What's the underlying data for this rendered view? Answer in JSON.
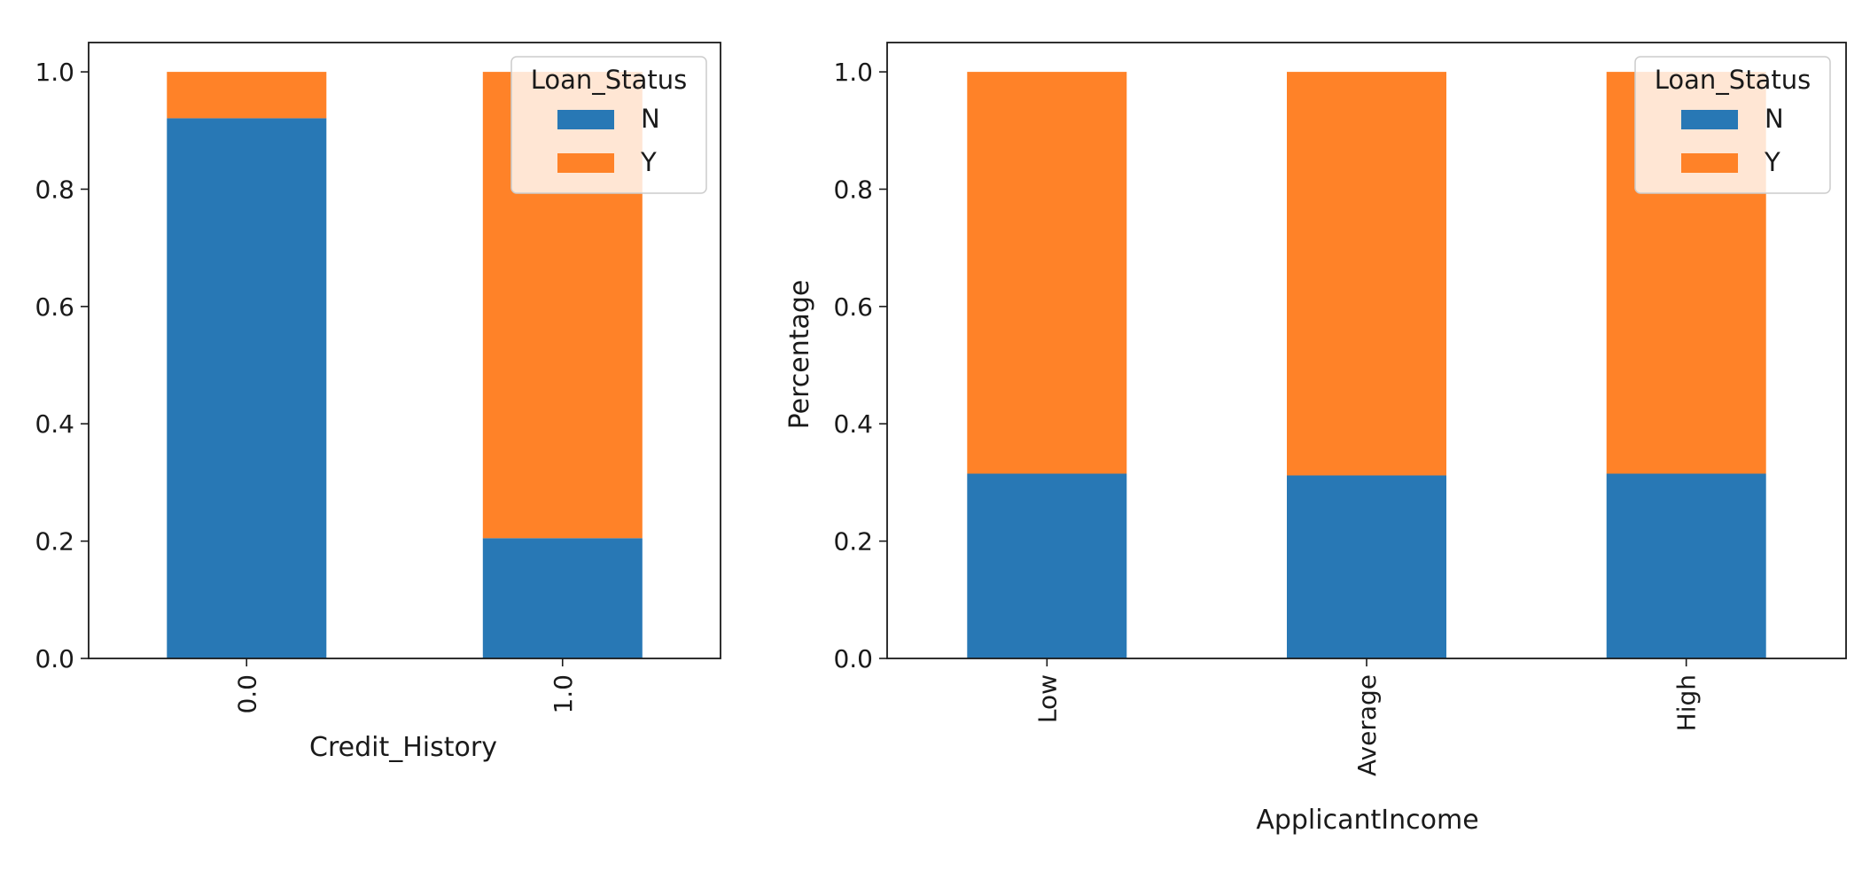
{
  "chart_data": [
    {
      "type": "bar",
      "stacked": true,
      "categories": [
        "0.0",
        "1.0"
      ],
      "series": [
        {
          "name": "N",
          "values": [
            0.921,
            0.205
          ]
        },
        {
          "name": "Y",
          "values": [
            0.079,
            0.795
          ]
        }
      ],
      "title": "",
      "xlabel": "Credit_History",
      "ylabel": "",
      "ylim": [
        0,
        1.05
      ],
      "yticks": [
        "0.0",
        "0.2",
        "0.4",
        "0.6",
        "0.8",
        "1.0"
      ],
      "legend": {
        "title": "Loan_Status",
        "placement": "top-right"
      },
      "grid": false
    },
    {
      "type": "bar",
      "stacked": true,
      "categories": [
        "Low",
        "Average",
        "High"
      ],
      "series": [
        {
          "name": "N",
          "values": [
            0.315,
            0.312,
            0.315
          ]
        },
        {
          "name": "Y",
          "values": [
            0.685,
            0.688,
            0.685
          ]
        }
      ],
      "title": "",
      "xlabel": "ApplicantIncome",
      "ylabel": "Percentage",
      "ylim": [
        0,
        1.05
      ],
      "yticks": [
        "0.0",
        "0.2",
        "0.4",
        "0.6",
        "0.8",
        "1.0"
      ],
      "legend": {
        "title": "Loan_Status",
        "placement": "top-right"
      },
      "grid": false
    }
  ],
  "colors": {
    "N": "#2878b5",
    "Y": "#ff8228"
  }
}
